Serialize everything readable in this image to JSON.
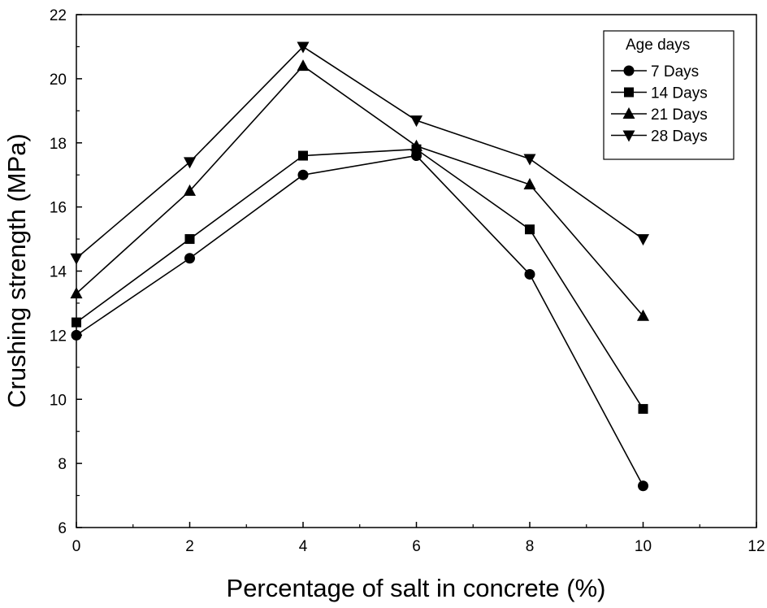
{
  "chart_data": {
    "type": "line",
    "title": "",
    "xlabel": "Percentage of salt in concrete (%)",
    "ylabel": "Crushing strength (MPa)",
    "xlim": [
      0,
      12
    ],
    "ylim": [
      6,
      22
    ],
    "xticks": [
      0,
      2,
      4,
      6,
      8,
      10,
      12
    ],
    "yticks": [
      6,
      8,
      10,
      12,
      14,
      16,
      18,
      20,
      22
    ],
    "grid": false,
    "legend": {
      "title": "Age days",
      "placement": "top-right"
    },
    "x": [
      0,
      2,
      4,
      6,
      8,
      10
    ],
    "series": [
      {
        "name": "7 Days",
        "marker": "circle",
        "values": [
          12.0,
          14.4,
          17.0,
          17.6,
          13.9,
          7.3
        ]
      },
      {
        "name": "14 Days",
        "marker": "square",
        "values": [
          12.4,
          15.0,
          17.6,
          17.8,
          15.3,
          9.7
        ]
      },
      {
        "name": "21 Days",
        "marker": "triangle-up",
        "values": [
          13.3,
          16.5,
          20.4,
          17.9,
          16.7,
          12.6
        ]
      },
      {
        "name": "28 Days",
        "marker": "triangle-down",
        "values": [
          14.4,
          17.4,
          21.0,
          18.7,
          17.5,
          15.0
        ]
      }
    ],
    "colors": {
      "line": "#000000",
      "marker": "#000000",
      "background": "#ffffff"
    }
  }
}
